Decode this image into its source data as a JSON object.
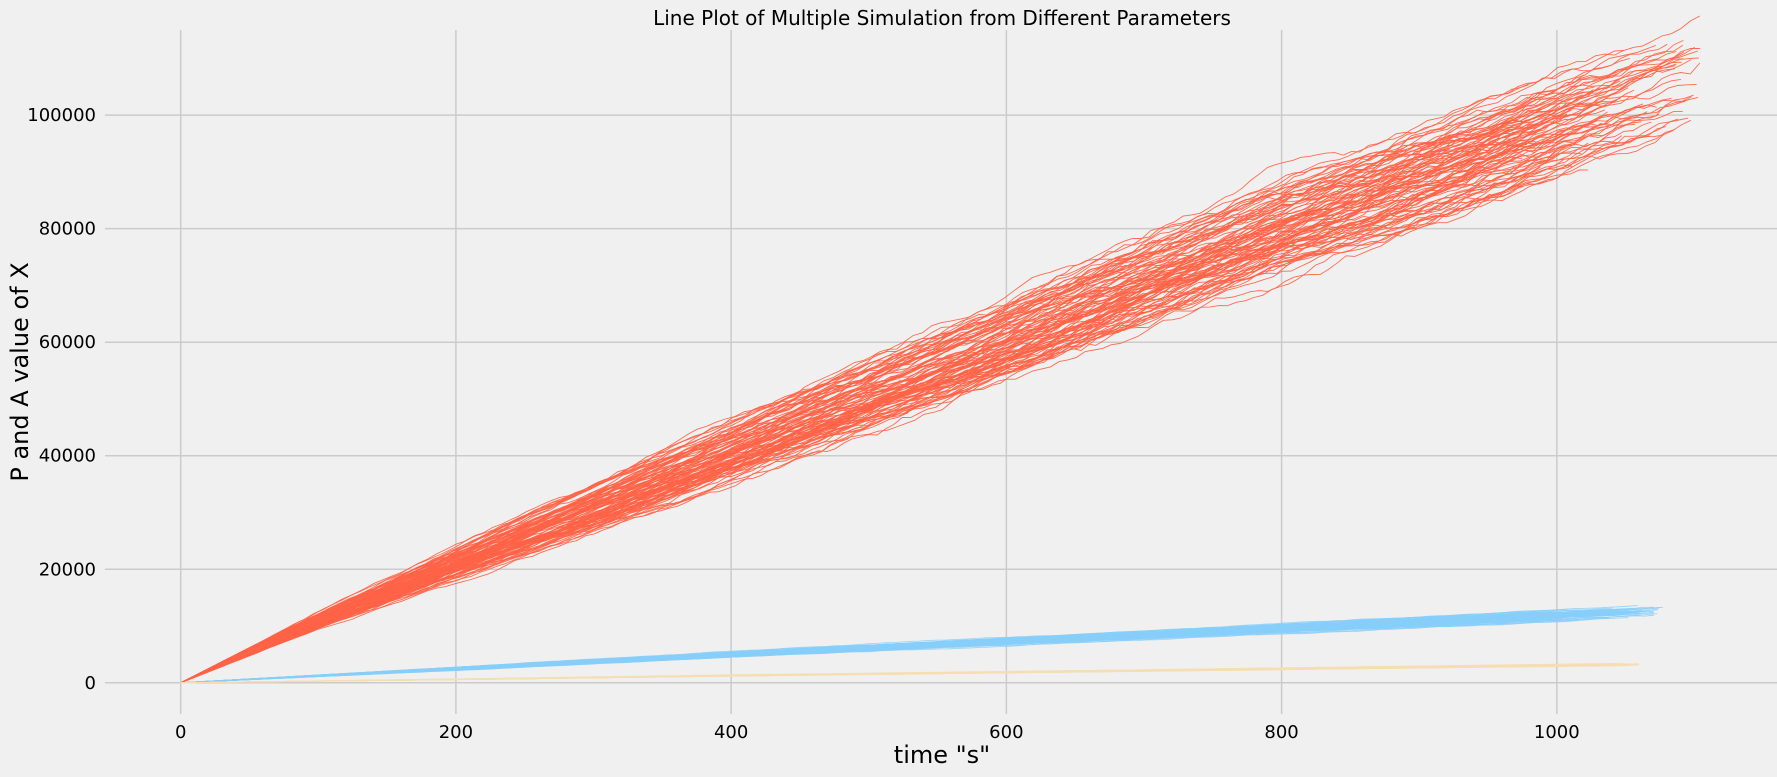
{
  "chart_data": {
    "type": "line",
    "title": "Line Plot of Multiple Simulation from Different Parameters",
    "xlabel": "time \"s\"",
    "ylabel": "P and A value of X",
    "xlim": [
      -55,
      1160
    ],
    "ylim": [
      -5500,
      115000
    ],
    "x_ticks": [
      0,
      200,
      400,
      600,
      800,
      1000
    ],
    "x_tick_labels": [
      "0",
      "200",
      "400",
      "600",
      "800",
      "1000"
    ],
    "y_ticks": [
      0,
      20000,
      40000,
      60000,
      80000,
      100000
    ],
    "y_tick_labels": [
      "0",
      "20000",
      "40000",
      "60000",
      "80000",
      "100000"
    ],
    "grid": true,
    "legend": "none",
    "series": [
      {
        "color": "#ff6347",
        "line_count": 100,
        "start": [
          0,
          0
        ],
        "end_x_range": [
          965,
          1105
        ],
        "end_y_range": [
          92000,
          110000
        ],
        "x": [
          0,
          100,
          200,
          300,
          400,
          500,
          600,
          700,
          800,
          900,
          1000
        ],
        "y_mean": [
          0,
          11000,
          21000,
          31000,
          41000,
          51000,
          61000,
          71000,
          81000,
          90000,
          99000
        ],
        "y_spread": [
          0,
          1200,
          2500,
          3500,
          4500,
          5200,
          5800,
          6300,
          6800,
          7200,
          7500
        ]
      },
      {
        "color": "#87cefa",
        "line_count": 100,
        "start": [
          0,
          0
        ],
        "end_x_range": [
          975,
          1080
        ],
        "end_y_range": [
          11500,
          12800
        ],
        "x": [
          0,
          200,
          400,
          600,
          800,
          1000
        ],
        "y_mean": [
          0,
          2500,
          5000,
          7300,
          9600,
          11900
        ],
        "y_spread": [
          0,
          250,
          400,
          500,
          600,
          700
        ]
      },
      {
        "color": "#f5deb3",
        "line_count": 100,
        "start": [
          0,
          0
        ],
        "end_x_range": [
          1040,
          1060
        ],
        "end_y_range": [
          3000,
          3300
        ],
        "x": [
          0,
          200,
          400,
          600,
          800,
          1000
        ],
        "y_mean": [
          0,
          600,
          1250,
          1850,
          2450,
          3050
        ],
        "y_spread": [
          0,
          50,
          80,
          100,
          120,
          140
        ]
      }
    ]
  }
}
